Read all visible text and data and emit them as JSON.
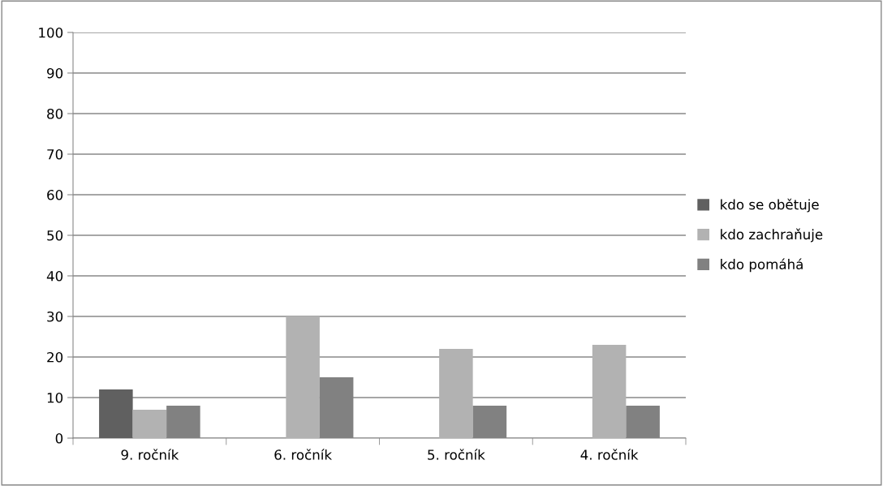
{
  "chart_data": {
    "type": "bar",
    "categories": [
      "9. ročník",
      "6. ročník",
      "5. ročník",
      "4. ročník"
    ],
    "series": [
      {
        "name": "kdo se obětuje",
        "color": "#606060",
        "values": [
          12,
          0,
          0,
          0
        ]
      },
      {
        "name": "kdo zachraňuje",
        "color": "#b2b2b2",
        "values": [
          7,
          30,
          22,
          23
        ]
      },
      {
        "name": "kdo pomáhá",
        "color": "#818181",
        "values": [
          8,
          15,
          8,
          8
        ]
      }
    ],
    "ylim": [
      0,
      100
    ],
    "yticks": [
      0,
      10,
      20,
      30,
      40,
      50,
      60,
      70,
      80,
      90,
      100
    ],
    "grid": "y",
    "legend": "right"
  }
}
